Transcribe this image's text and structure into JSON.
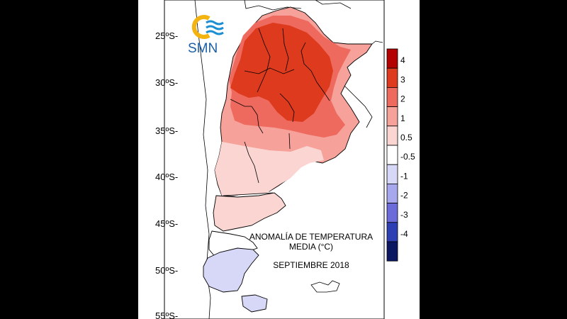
{
  "logo": {
    "text": "SMN"
  },
  "map": {
    "title_line1": "ANOMALÍA DE TEMPERATURA",
    "title_line2": "MEDIA (°C)",
    "period": "SEPTIEMBRE 2018",
    "latitude_labels": [
      "25ºS-",
      "30ºS-",
      "35ºS-",
      "40ºS-",
      "45ºS-",
      "50ºS-",
      "55ºS-"
    ]
  },
  "legend": {
    "bins": [
      {
        "color": "#b30000"
      },
      {
        "color": "#dd3a1e"
      },
      {
        "color": "#ef6a5e"
      },
      {
        "color": "#f6a19a"
      },
      {
        "color": "#fbd5d1"
      },
      {
        "color": "#ffffff"
      },
      {
        "color": "#d7d7f7"
      },
      {
        "color": "#a7a7ee"
      },
      {
        "color": "#6b6bd9"
      },
      {
        "color": "#2e3fb3"
      },
      {
        "color": "#0b1763"
      }
    ],
    "labels": [
      "4",
      "3",
      "2",
      "1",
      "0.5",
      "-0.5",
      "-1",
      "-2",
      "-3",
      "-4"
    ]
  }
}
